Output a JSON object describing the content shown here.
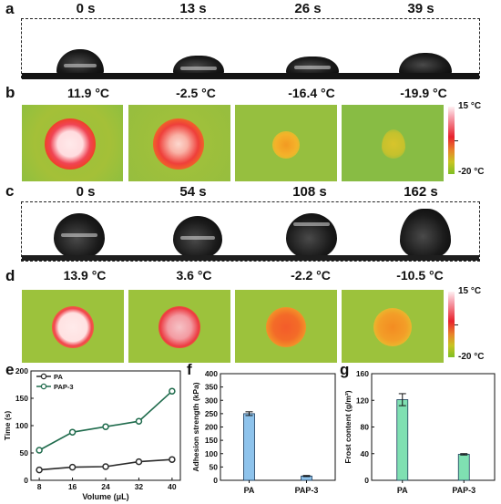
{
  "panels": {
    "a": {
      "letter": "a",
      "times": [
        "0 s",
        "13 s",
        "26 s",
        "39 s"
      ]
    },
    "b": {
      "letter": "b",
      "temps": [
        "11.9 °C",
        "-2.5 °C",
        "-16.4 °C",
        "-19.9 °C"
      ],
      "cbar_max": "15 °C",
      "cbar_min": "-20 °C"
    },
    "c": {
      "letter": "c",
      "times": [
        "0 s",
        "54 s",
        "108 s",
        "162 s"
      ]
    },
    "d": {
      "letter": "d",
      "temps": [
        "13.9 °C",
        "3.6 °C",
        "-2.2 °C",
        "-10.5 °C"
      ],
      "cbar_max": "15 °C",
      "cbar_min": "-20 °C"
    },
    "e": {
      "letter": "e"
    },
    "f": {
      "letter": "f"
    },
    "g": {
      "letter": "g"
    }
  },
  "colors": {
    "PA": "#2a2a2a",
    "PAP3": "#1f6b4c",
    "bar_f": "#8ec3ec",
    "bar_g": "#7fe0b2"
  },
  "chart_data": [
    {
      "panel": "e",
      "type": "line",
      "x": [
        8,
        16,
        24,
        32,
        40
      ],
      "series": [
        {
          "name": "PA",
          "values": [
            19,
            24,
            25,
            34,
            38
          ]
        },
        {
          "name": "PAP-3",
          "values": [
            55,
            88,
            98,
            108,
            163
          ]
        }
      ],
      "xlabel": "Volume (μL)",
      "ylabel": "Time (s)",
      "xticks": [
        "8",
        "16",
        "24",
        "32",
        "40"
      ],
      "yticks": [
        "0",
        "50",
        "100",
        "150",
        "200"
      ],
      "ylim": [
        0,
        200
      ],
      "legend": "top-left"
    },
    {
      "panel": "f",
      "type": "bar",
      "categories": [
        "PA",
        "PAP-3"
      ],
      "values": [
        250,
        16
      ],
      "errors": [
        7,
        2
      ],
      "ylabel": "Adhesion strength (kPa)",
      "yticks": [
        "0",
        "50",
        "100",
        "150",
        "200",
        "250",
        "300",
        "350",
        "400"
      ],
      "ylim": [
        0,
        400
      ]
    },
    {
      "panel": "g",
      "type": "bar",
      "categories": [
        "PA",
        "PAP-3"
      ],
      "values": [
        121,
        39
      ],
      "errors": [
        9,
        1
      ],
      "ylabel": "Frost content (g/m²)",
      "yticks": [
        "0",
        "40",
        "80",
        "120",
        "160"
      ],
      "ylim": [
        0,
        160
      ]
    }
  ]
}
